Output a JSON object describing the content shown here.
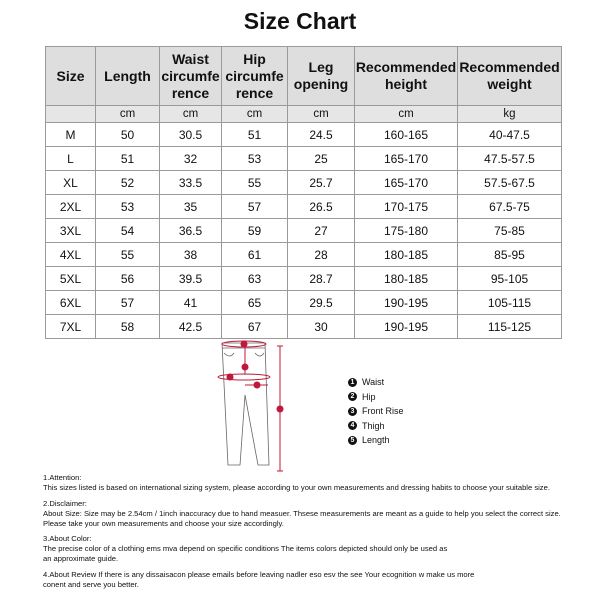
{
  "title": "Size Chart",
  "headers": [
    "Size",
    "Length",
    "Waist circumfe rence",
    "Hip circumfe rence",
    "Leg opening",
    "Recommended height",
    "Recommended weight"
  ],
  "units": [
    "",
    "cm",
    "cm",
    "cm",
    "cm",
    "cm",
    "kg"
  ],
  "rows": [
    [
      "M",
      "50",
      "30.5",
      "51",
      "24.5",
      "160-165",
      "40-47.5"
    ],
    [
      "L",
      "51",
      "32",
      "53",
      "25",
      "165-170",
      "47.5-57.5"
    ],
    [
      "XL",
      "52",
      "33.5",
      "55",
      "25.7",
      "165-170",
      "57.5-67.5"
    ],
    [
      "2XL",
      "53",
      "35",
      "57",
      "26.5",
      "170-175",
      "67.5-75"
    ],
    [
      "3XL",
      "54",
      "36.5",
      "59",
      "27",
      "175-180",
      "75-85"
    ],
    [
      "4XL",
      "55",
      "38",
      "61",
      "28",
      "180-185",
      "85-95"
    ],
    [
      "5XL",
      "56",
      "39.5",
      "63",
      "28.7",
      "180-185",
      "95-105"
    ],
    [
      "6XL",
      "57",
      "41",
      "65",
      "29.5",
      "190-195",
      "105-115"
    ],
    [
      "7XL",
      "58",
      "42.5",
      "67",
      "30",
      "190-195",
      "115-125"
    ]
  ],
  "legend": [
    {
      "n": "1",
      "label": "Waist"
    },
    {
      "n": "2",
      "label": "Hip"
    },
    {
      "n": "3",
      "label": "Front Rise"
    },
    {
      "n": "4",
      "label": "Thigh"
    },
    {
      "n": "5",
      "label": "Length"
    }
  ],
  "notes": [
    {
      "heading": "1.Attention:",
      "lines": [
        "This sizes listed is based on international sizing system, please according to your own measurements and dressing habits to choose your suitable size."
      ]
    },
    {
      "heading": "2.Disclaimer:",
      "lines": [
        "About Size: Size may be 2.54cm / 1inch inaccuracy due to hand measuer. Thsese measurements are meant as a guide to help you select the correct size.",
        "Please take your own measurements and choose your size accordingly."
      ]
    },
    {
      "heading": "3.About Color:",
      "lines": [
        "The precise color of a clothing ems mva depend on specific conditions The items colors depicted should only be used as",
        "an approximate guide."
      ]
    },
    {
      "heading": "",
      "lines": [
        "4.About Review If there is any dissaisacon please emails before leaving nadler eso esv the see Your ecognition w make us more",
        "conent and serve you better."
      ]
    }
  ],
  "colors": {
    "measure": "#c0183a",
    "header_bg": "#dedede",
    "border": "#9a9a9a"
  }
}
